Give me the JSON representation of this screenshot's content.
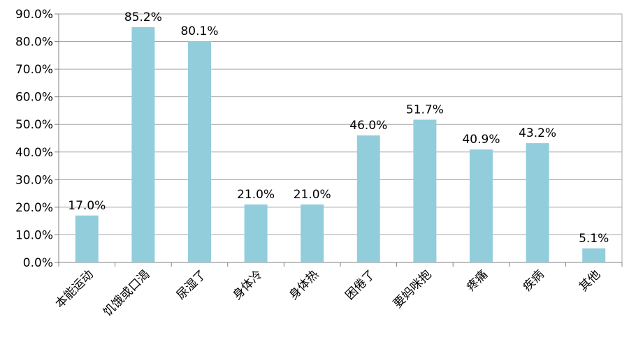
{
  "chart_data": {
    "type": "bar",
    "categories": [
      "本能运动",
      "饥饿或口渴",
      "尿湿了",
      "身体冷",
      "身体热",
      "困倦了",
      "要妈咪抱",
      "疼痛",
      "疾病",
      "其他"
    ],
    "values": [
      17.0,
      85.2,
      80.1,
      21.0,
      21.0,
      46.0,
      51.7,
      40.9,
      43.2,
      5.1
    ],
    "data_labels": [
      "17.0%",
      "85.2%",
      "80.1%",
      "21.0%",
      "21.0%",
      "46.0%",
      "51.7%",
      "40.9%",
      "43.2%",
      "5.1%"
    ],
    "y_ticks": [
      {
        "value": 0,
        "label": "0.0%"
      },
      {
        "value": 10,
        "label": "10.0%"
      },
      {
        "value": 20,
        "label": "20.0%"
      },
      {
        "value": 30,
        "label": "30.0%"
      },
      {
        "value": 40,
        "label": "40.0%"
      },
      {
        "value": 50,
        "label": "50.0%"
      },
      {
        "value": 60,
        "label": "60.0%"
      },
      {
        "value": 70,
        "label": "70.0%"
      },
      {
        "value": 80,
        "label": "80.0%"
      },
      {
        "value": 90,
        "label": "90.0%"
      }
    ],
    "ylim": [
      0,
      90
    ],
    "grid": true,
    "legend": "none",
    "bar_color": "#92cddc",
    "grid_color": "#a6a6a6"
  }
}
